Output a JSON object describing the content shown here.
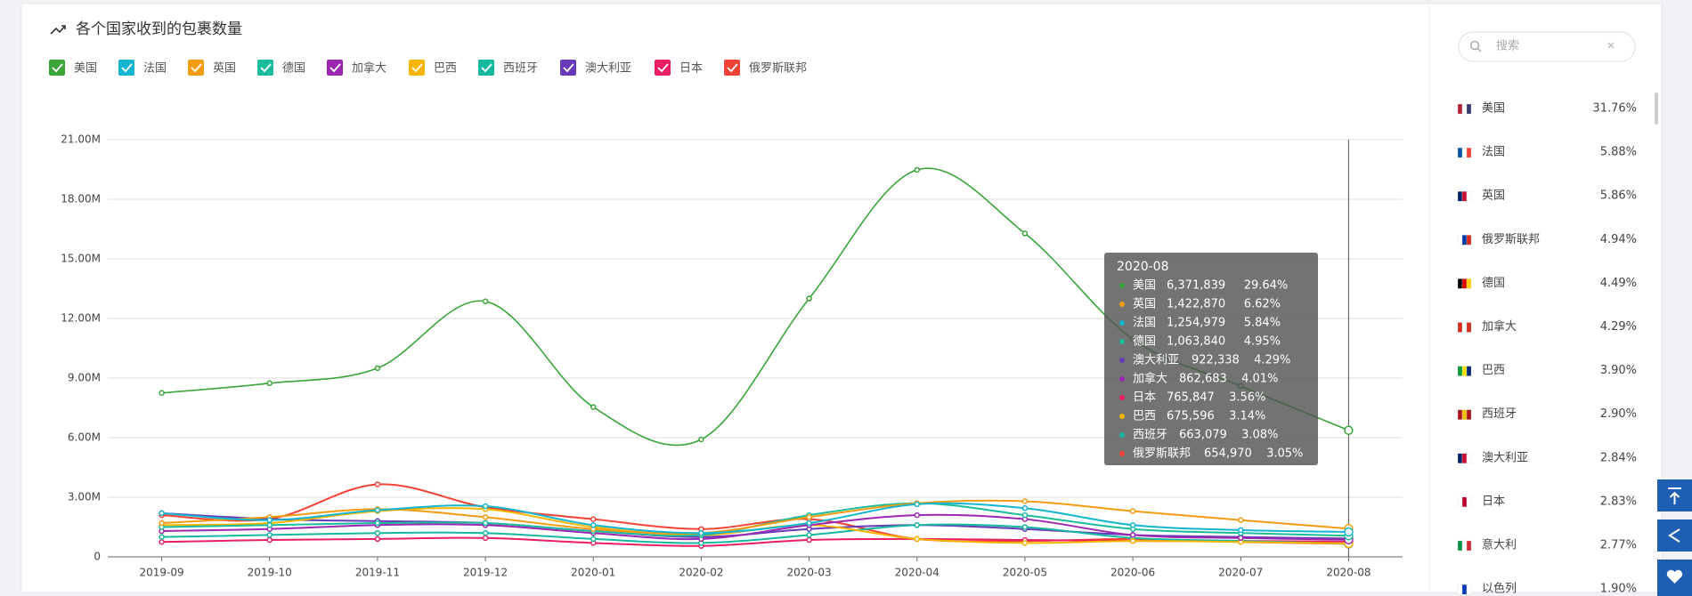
{
  "chart_data": {
    "type": "line",
    "title": "各个国家收到的包裹数量",
    "categories": [
      "2019-09",
      "2019-10",
      "2019-11",
      "2019-12",
      "2020-01",
      "2020-02",
      "2020-03",
      "2020-04",
      "2020-05",
      "2020-06",
      "2020-07",
      "2020-08"
    ],
    "ylim": [
      0,
      21000000
    ],
    "yticks": [
      0,
      {
        "value": 3000000,
        "label": "3.00M"
      },
      {
        "value": 6000000,
        "label": "6.00M"
      },
      {
        "value": 9000000,
        "label": "9.00M"
      },
      {
        "value": 12000000,
        "label": "12.00M"
      },
      {
        "value": 15000000,
        "label": "15.00M"
      },
      {
        "value": 18000000,
        "label": "18.00M"
      },
      {
        "value": 21000000,
        "label": "21.00M"
      }
    ],
    "grid": true,
    "series": [
      {
        "name": "美国",
        "color": "#3aa63a",
        "values": [
          8250000,
          8740000,
          9500000,
          12860000,
          7540000,
          5910000,
          13000000,
          19480000,
          16280000,
          10960000,
          8600000,
          6371839
        ]
      },
      {
        "name": "法国",
        "color": "#13b5cf",
        "values": [
          2200000,
          1850000,
          2350000,
          2550000,
          1600000,
          1200000,
          1700000,
          2650000,
          2450000,
          1600000,
          1350000,
          1254979
        ]
      },
      {
        "name": "英国",
        "color": "#f39c12",
        "values": [
          1700000,
          2000000,
          2400000,
          2000000,
          1400000,
          1200000,
          2000000,
          2700000,
          2800000,
          2300000,
          1850000,
          1422870
        ]
      },
      {
        "name": "德国",
        "color": "#1abc9c",
        "values": [
          1500000,
          1600000,
          1700000,
          1700000,
          1300000,
          1100000,
          2100000,
          2700000,
          2100000,
          1400000,
          1200000,
          1063840
        ]
      },
      {
        "name": "加拿大",
        "color": "#9c27b0",
        "values": [
          1300000,
          1400000,
          1600000,
          1600000,
          1200000,
          900000,
          1600000,
          2100000,
          1900000,
          1100000,
          950000,
          862683
        ]
      },
      {
        "name": "巴西",
        "color": "#f7b500",
        "values": [
          1600000,
          1700000,
          2300000,
          2400000,
          1500000,
          1100000,
          1600000,
          900000,
          700000,
          800000,
          750000,
          675596
        ]
      },
      {
        "name": "西班牙",
        "color": "#16b8a0",
        "values": [
          1000000,
          1100000,
          1200000,
          1200000,
          900000,
          700000,
          1100000,
          1600000,
          1500000,
          950000,
          800000,
          663079
        ]
      },
      {
        "name": "澳大利亚",
        "color": "#673ab7",
        "values": [
          2200000,
          1900000,
          1800000,
          1700000,
          1300000,
          1000000,
          1400000,
          1600000,
          1400000,
          1100000,
          1000000,
          922338
        ]
      },
      {
        "name": "日本",
        "color": "#e91e63",
        "values": [
          750000,
          850000,
          900000,
          950000,
          700000,
          550000,
          850000,
          900000,
          850000,
          800000,
          800000,
          765847
        ]
      },
      {
        "name": "俄罗斯联邦",
        "color": "#f44336",
        "values": [
          2100000,
          1900000,
          3650000,
          2500000,
          1900000,
          1400000,
          1900000,
          900000,
          800000,
          900000,
          750000,
          654970
        ]
      }
    ],
    "tooltip": {
      "title": "2020-08",
      "rows": [
        {
          "name": "美国",
          "value": "6,371,839",
          "share": "29.64%"
        },
        {
          "name": "英国",
          "value": "1,422,870",
          "share": "6.62%"
        },
        {
          "name": "法国",
          "value": "1,254,979",
          "share": "5.84%"
        },
        {
          "name": "德国",
          "value": "1,063,840",
          "share": "4.95%"
        },
        {
          "name": "澳大利亚",
          "value": "922,338",
          "share": "4.29%"
        },
        {
          "name": "加拿大",
          "value": "862,683",
          "share": "4.01%"
        },
        {
          "name": "日本",
          "value": "765,847",
          "share": "3.56%"
        },
        {
          "name": "巴西",
          "value": "675,596",
          "share": "3.14%"
        },
        {
          "name": "西班牙",
          "value": "663,079",
          "share": "3.08%"
        },
        {
          "name": "俄罗斯联邦",
          "value": "654,970",
          "share": "3.05%"
        }
      ]
    }
  },
  "side_panel": {
    "search_placeholder": "搜索",
    "countries": [
      {
        "name": "美国",
        "share": "31.76%"
      },
      {
        "name": "法国",
        "share": "5.88%"
      },
      {
        "name": "英国",
        "share": "5.86%"
      },
      {
        "name": "俄罗斯联邦",
        "share": "4.94%"
      },
      {
        "name": "德国",
        "share": "4.49%"
      },
      {
        "name": "加拿大",
        "share": "4.29%"
      },
      {
        "name": "巴西",
        "share": "3.90%"
      },
      {
        "name": "西班牙",
        "share": "2.90%"
      },
      {
        "name": "澳大利亚",
        "share": "2.84%"
      },
      {
        "name": "日本",
        "share": "2.83%"
      },
      {
        "name": "意大利",
        "share": "2.77%"
      },
      {
        "name": "以色列",
        "share": "1.90%"
      }
    ]
  }
}
